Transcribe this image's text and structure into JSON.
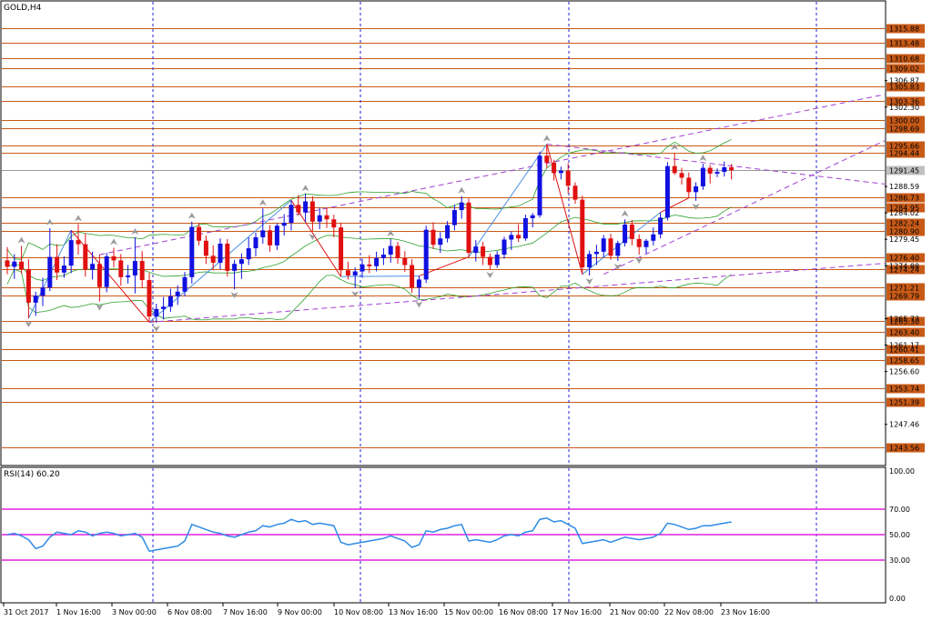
{
  "header": {
    "title": "GOLD,H4"
  },
  "rsi_panel": {
    "title": "RSI(14) 60.20"
  },
  "chart_data": [
    {
      "type": "candlestick",
      "title": "GOLD,H4",
      "ylim": [
        1240.5,
        1320.5
      ],
      "y_ticks": [
        "1306.87",
        "1302.30",
        "1288.59",
        "1284.02",
        "1279.45",
        "1274.88",
        "1265.73",
        "1261.17",
        "1256.60",
        "1247.46"
      ],
      "x_ticks": [
        "31 Oct 2017",
        "1 Nov 16:00",
        "3 Nov 00:00",
        "6 Nov 08:00",
        "7 Nov 16:00",
        "9 Nov 00:00",
        "10 Nov 08:00",
        "13 Nov 16:00",
        "15 Nov 00:00",
        "16 Nov 08:00",
        "17 Nov 16:00",
        "21 Nov 00:00",
        "22 Nov 08:00",
        "23 Nov 16:00"
      ],
      "horizontal_levels": [
        "1315.88",
        "1313.48",
        "1310.68",
        "1309.02",
        "1305.83",
        "1303.36",
        "1300.00",
        "1298.69",
        "1295.66",
        "1294.44",
        "1286.73",
        "1284.95",
        "1282.24",
        "1280.90",
        "1276.40",
        "1274.24",
        "1271.21",
        "1269.79",
        "1265.30",
        "1263.40",
        "1260.41",
        "1258.65",
        "1253.74",
        "1251.39",
        "1243.56"
      ],
      "current_price": "1291.45",
      "colors": {
        "bull": "#1010e0",
        "bear": "#e01010",
        "level": "#c85a17",
        "bands": "#2ca02c",
        "channel": "#a040d0",
        "zigzag_up": "#4a90e2",
        "zigzag_down": "#e01010",
        "current_price_box": "#c0c0c0"
      },
      "ohlc": [
        [
          1275.8,
          1278.1,
          1273.4,
          1274.7
        ],
        [
          1274.7,
          1276.9,
          1272.6,
          1275.6
        ],
        [
          1275.6,
          1278.3,
          1273.5,
          1274.3
        ],
        [
          1274.3,
          1276.0,
          1265.8,
          1268.5
        ],
        [
          1268.5,
          1270.4,
          1266.2,
          1269.7
        ],
        [
          1269.7,
          1272.8,
          1267.9,
          1271.1
        ],
        [
          1271.1,
          1281.4,
          1270.5,
          1276.4
        ],
        [
          1276.4,
          1278.6,
          1272.4,
          1273.7
        ],
        [
          1273.7,
          1276.5,
          1272.8,
          1274.9
        ],
        [
          1274.9,
          1281.0,
          1273.6,
          1279.3
        ],
        [
          1279.3,
          1282.1,
          1276.8,
          1278.6
        ],
        [
          1278.6,
          1280.5,
          1273.0,
          1274.2
        ],
        [
          1274.2,
          1277.3,
          1272.5,
          1275.2
        ],
        [
          1275.2,
          1276.8,
          1268.7,
          1271.2
        ],
        [
          1271.2,
          1277.1,
          1270.3,
          1276.5
        ],
        [
          1276.5,
          1278.0,
          1274.6,
          1275.8
        ],
        [
          1275.8,
          1276.9,
          1271.4,
          1272.9
        ],
        [
          1272.9,
          1275.0,
          1271.8,
          1273.2
        ],
        [
          1273.2,
          1279.8,
          1270.1,
          1275.7
        ],
        [
          1275.7,
          1277.4,
          1271.0,
          1272.4
        ],
        [
          1272.4,
          1273.6,
          1265.1,
          1266.1
        ],
        [
          1266.1,
          1268.3,
          1265.0,
          1267.4
        ],
        [
          1267.4,
          1269.5,
          1265.6,
          1267.8
        ],
        [
          1267.8,
          1270.9,
          1266.9,
          1269.6
        ],
        [
          1269.6,
          1271.5,
          1268.1,
          1270.4
        ],
        [
          1270.4,
          1273.8,
          1269.6,
          1272.9
        ],
        [
          1272.9,
          1282.5,
          1271.8,
          1281.6
        ],
        [
          1281.6,
          1282.3,
          1278.4,
          1279.2
        ],
        [
          1279.2,
          1280.1,
          1275.2,
          1276.6
        ],
        [
          1276.6,
          1278.4,
          1274.1,
          1275.4
        ],
        [
          1275.4,
          1279.6,
          1274.3,
          1278.7
        ],
        [
          1278.7,
          1279.5,
          1273.0,
          1274.0
        ],
        [
          1274.0,
          1275.9,
          1270.8,
          1275.2
        ],
        [
          1275.2,
          1277.0,
          1272.6,
          1276.0
        ],
        [
          1276.0,
          1279.8,
          1275.0,
          1277.9
        ],
        [
          1277.9,
          1280.6,
          1276.5,
          1279.8
        ],
        [
          1279.8,
          1284.8,
          1278.7,
          1281.0
        ],
        [
          1281.0,
          1281.9,
          1277.3,
          1278.4
        ],
        [
          1278.4,
          1282.2,
          1277.6,
          1281.8
        ],
        [
          1281.8,
          1283.8,
          1280.1,
          1282.3
        ],
        [
          1282.3,
          1286.2,
          1281.0,
          1285.4
        ],
        [
          1285.4,
          1287.1,
          1283.5,
          1284.1
        ],
        [
          1284.1,
          1287.3,
          1282.4,
          1286.0
        ],
        [
          1286.0,
          1286.9,
          1280.9,
          1282.5
        ],
        [
          1282.5,
          1284.9,
          1281.2,
          1283.6
        ],
        [
          1283.6,
          1284.8,
          1281.4,
          1282.9
        ],
        [
          1282.9,
          1283.7,
          1279.8,
          1281.5
        ],
        [
          1281.5,
          1282.3,
          1273.0,
          1274.1
        ],
        [
          1274.1,
          1275.6,
          1272.5,
          1273.2
        ],
        [
          1273.2,
          1274.6,
          1271.0,
          1273.9
        ],
        [
          1273.9,
          1276.1,
          1272.8,
          1275.1
        ],
        [
          1275.1,
          1276.7,
          1273.6,
          1274.8
        ],
        [
          1274.8,
          1277.3,
          1273.9,
          1276.2
        ],
        [
          1276.2,
          1277.9,
          1275.0,
          1276.8
        ],
        [
          1276.8,
          1279.5,
          1275.4,
          1278.3
        ],
        [
          1278.3,
          1279.0,
          1275.2,
          1276.2
        ],
        [
          1276.2,
          1277.4,
          1273.8,
          1275.0
        ],
        [
          1275.0,
          1276.0,
          1270.2,
          1271.1
        ],
        [
          1271.1,
          1273.1,
          1269.2,
          1272.5
        ],
        [
          1272.5,
          1281.8,
          1271.9,
          1281.1
        ],
        [
          1281.1,
          1282.4,
          1277.8,
          1278.5
        ],
        [
          1278.5,
          1280.7,
          1277.1,
          1279.6
        ],
        [
          1279.6,
          1282.6,
          1278.9,
          1281.9
        ],
        [
          1281.9,
          1285.4,
          1281.0,
          1284.5
        ],
        [
          1284.5,
          1286.9,
          1283.0,
          1285.8
        ],
        [
          1285.8,
          1286.5,
          1276.4,
          1277.1
        ],
        [
          1277.1,
          1279.3,
          1275.6,
          1278.2
        ],
        [
          1278.2,
          1279.0,
          1275.0,
          1276.4
        ],
        [
          1276.4,
          1277.0,
          1274.3,
          1275.0
        ],
        [
          1275.0,
          1277.4,
          1274.5,
          1276.8
        ],
        [
          1276.8,
          1279.9,
          1276.1,
          1279.4
        ],
        [
          1279.4,
          1280.8,
          1277.6,
          1280.2
        ],
        [
          1280.2,
          1282.1,
          1279.0,
          1279.6
        ],
        [
          1279.6,
          1283.7,
          1279.2,
          1283.1
        ],
        [
          1283.1,
          1284.0,
          1281.5,
          1283.6
        ],
        [
          1283.6,
          1294.6,
          1283.2,
          1293.9
        ],
        [
          1293.9,
          1295.9,
          1291.8,
          1292.7
        ],
        [
          1292.7,
          1293.2,
          1289.6,
          1290.9
        ],
        [
          1290.9,
          1292.0,
          1289.8,
          1291.3
        ],
        [
          1291.3,
          1292.6,
          1287.4,
          1288.7
        ],
        [
          1288.7,
          1289.3,
          1285.6,
          1286.3
        ],
        [
          1286.3,
          1287.0,
          1273.4,
          1274.6
        ],
        [
          1274.6,
          1277.5,
          1273.2,
          1276.9
        ],
        [
          1276.9,
          1278.5,
          1275.0,
          1277.3
        ],
        [
          1277.3,
          1280.2,
          1276.3,
          1279.6
        ],
        [
          1279.6,
          1280.4,
          1275.9,
          1276.6
        ],
        [
          1276.6,
          1279.2,
          1275.7,
          1278.8
        ],
        [
          1278.8,
          1282.9,
          1278.2,
          1282.0
        ],
        [
          1282.0,
          1282.8,
          1278.4,
          1279.5
        ],
        [
          1279.5,
          1280.3,
          1276.8,
          1278.1
        ],
        [
          1278.1,
          1279.5,
          1277.0,
          1279.2
        ],
        [
          1279.2,
          1281.5,
          1278.4,
          1280.3
        ],
        [
          1280.3,
          1284.1,
          1279.6,
          1283.2
        ],
        [
          1283.2,
          1292.8,
          1282.7,
          1292.1
        ],
        [
          1292.1,
          1294.4,
          1290.6,
          1290.9
        ],
        [
          1290.9,
          1291.8,
          1288.9,
          1290.1
        ],
        [
          1290.1,
          1291.0,
          1286.6,
          1287.6
        ],
        [
          1287.6,
          1289.3,
          1286.1,
          1288.6
        ],
        [
          1288.6,
          1292.5,
          1288.0,
          1291.8
        ],
        [
          1291.8,
          1292.3,
          1289.1,
          1290.8
        ],
        [
          1290.8,
          1291.7,
          1290.2,
          1291.1
        ],
        [
          1291.1,
          1292.9,
          1290.3,
          1291.9
        ],
        [
          1291.9,
          1292.5,
          1289.8,
          1291.4
        ]
      ]
    },
    {
      "type": "line",
      "title": "RSI(14) 60.20",
      "ylim": [
        0,
        100
      ],
      "y_ticks": [
        "100.00",
        "70.00",
        "50.00",
        "30.00",
        "0.00"
      ],
      "levels": [
        70,
        50,
        30
      ],
      "colors": {
        "line": "#2e8ae6",
        "levels": "#e020e0"
      },
      "values": [
        50,
        51,
        49,
        46,
        39,
        41,
        48,
        52,
        51,
        50,
        53,
        52,
        49,
        51,
        52,
        51,
        49,
        50,
        51,
        48,
        37,
        38,
        39,
        40,
        41,
        45,
        58,
        56,
        54,
        52,
        51,
        49,
        48,
        50,
        52,
        53,
        57,
        56,
        58,
        59,
        62,
        60,
        61,
        58,
        59,
        58,
        57,
        44,
        42,
        43,
        44,
        45,
        46,
        47,
        49,
        47,
        45,
        40,
        42,
        53,
        52,
        54,
        55,
        57,
        58,
        45,
        46,
        45,
        44,
        46,
        49,
        50,
        49,
        52,
        53,
        62,
        63,
        60,
        61,
        58,
        55,
        43,
        44,
        45,
        46,
        44,
        46,
        48,
        47,
        46,
        47,
        48,
        51,
        59,
        58,
        56,
        54,
        55,
        57,
        57,
        58,
        59,
        60
      ]
    }
  ]
}
